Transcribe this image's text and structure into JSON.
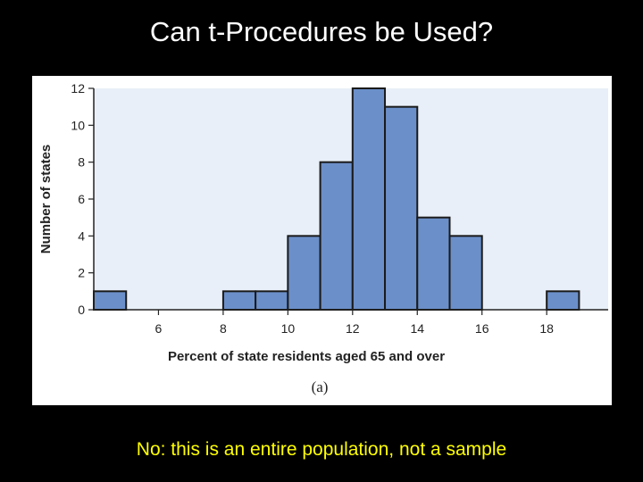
{
  "slide": {
    "title": "Can t-Procedures be Used?",
    "note": "No:  this is an entire population, not a sample"
  },
  "colors": {
    "background": "#000000",
    "title": "#ffffff",
    "note": "#ffff00",
    "plot_area": "#e8eff8",
    "bar_fill": "#6b8fc9",
    "bar_stroke": "#1a1a1a"
  },
  "chart_data": {
    "type": "bar",
    "subtype": "histogram",
    "bin_width": 1,
    "bins": [
      {
        "start": 4,
        "end": 5,
        "count": 1
      },
      {
        "start": 8,
        "end": 9,
        "count": 1
      },
      {
        "start": 9,
        "end": 10,
        "count": 1
      },
      {
        "start": 10,
        "end": 11,
        "count": 4
      },
      {
        "start": 11,
        "end": 12,
        "count": 8
      },
      {
        "start": 12,
        "end": 13,
        "count": 12
      },
      {
        "start": 13,
        "end": 14,
        "count": 11
      },
      {
        "start": 14,
        "end": 15,
        "count": 5
      },
      {
        "start": 15,
        "end": 16,
        "count": 4
      },
      {
        "start": 18,
        "end": 19,
        "count": 1
      }
    ],
    "xlabel": "Percent of state residents aged 65 and over",
    "ylabel": "Number of states",
    "xlim": [
      4,
      19.9
    ],
    "ylim": [
      0,
      12
    ],
    "xticks": [
      6,
      8,
      10,
      12,
      14,
      16,
      18
    ],
    "yticks": [
      0,
      2,
      4,
      6,
      8,
      10,
      12
    ],
    "caption": "(a)",
    "grid": false
  }
}
